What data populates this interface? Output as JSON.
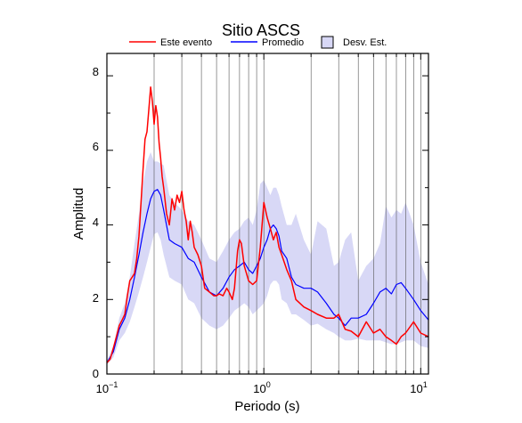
{
  "chart_data": {
    "type": "line",
    "title": "Sitio ASCS",
    "xlabel": "Periodo (s)",
    "ylabel": "Amplitud",
    "x_scale": "log",
    "xlim": [
      0.1,
      11.2
    ],
    "ylim": [
      0,
      8.6
    ],
    "x_major_ticks": [
      0.1,
      1,
      10
    ],
    "y_ticks": [
      0,
      2,
      4,
      6,
      8
    ],
    "grid": "vertical log grid lines",
    "legend_position": "top",
    "legend": [
      {
        "label": "Este evento",
        "kind": "line",
        "color": "#ff0000"
      },
      {
        "label": "Promedio",
        "kind": "line",
        "color": "#0000ff"
      },
      {
        "label": "Desv. Est.",
        "kind": "band",
        "color": "#d8d8f6"
      }
    ],
    "series": [
      {
        "name": "Este evento",
        "color": "#ff0000",
        "x": [
          0.1,
          0.105,
          0.11,
          0.115,
          0.12,
          0.125,
          0.13,
          0.135,
          0.14,
          0.145,
          0.15,
          0.155,
          0.16,
          0.165,
          0.17,
          0.175,
          0.18,
          0.185,
          0.19,
          0.195,
          0.2,
          0.205,
          0.21,
          0.215,
          0.22,
          0.225,
          0.23,
          0.24,
          0.25,
          0.26,
          0.27,
          0.28,
          0.29,
          0.3,
          0.31,
          0.32,
          0.33,
          0.34,
          0.35,
          0.36,
          0.38,
          0.4,
          0.42,
          0.45,
          0.48,
          0.5,
          0.52,
          0.55,
          0.58,
          0.6,
          0.63,
          0.65,
          0.68,
          0.7,
          0.72,
          0.75,
          0.8,
          0.85,
          0.9,
          0.95,
          1.0,
          1.05,
          1.1,
          1.15,
          1.2,
          1.25,
          1.3,
          1.4,
          1.5,
          1.6,
          1.8,
          2.0,
          2.2,
          2.5,
          2.8,
          3.0,
          3.3,
          3.6,
          4.0,
          4.5,
          5.0,
          5.5,
          6.0,
          6.5,
          7.0,
          7.5,
          8.0,
          9.0,
          10.0,
          11.2
        ],
        "values": [
          0.3,
          0.4,
          0.7,
          1.0,
          1.3,
          1.45,
          1.6,
          2.1,
          2.5,
          2.6,
          2.7,
          3.1,
          3.7,
          4.6,
          5.5,
          6.3,
          6.5,
          7.1,
          7.7,
          7.3,
          6.7,
          7.2,
          6.9,
          6.2,
          5.8,
          5.3,
          5.0,
          4.3,
          4.0,
          4.7,
          4.4,
          4.8,
          4.6,
          4.9,
          4.4,
          4.1,
          3.6,
          4.1,
          3.8,
          3.4,
          3.2,
          2.9,
          2.3,
          2.2,
          2.1,
          2.1,
          2.15,
          2.1,
          2.3,
          2.2,
          2.0,
          2.3,
          3.3,
          3.6,
          3.5,
          2.9,
          2.5,
          2.4,
          2.5,
          3.4,
          4.6,
          4.2,
          3.9,
          3.6,
          3.8,
          3.4,
          3.2,
          2.8,
          2.5,
          2.0,
          1.8,
          1.7,
          1.6,
          1.5,
          1.5,
          1.6,
          1.2,
          1.15,
          1.0,
          1.4,
          1.1,
          1.2,
          1.0,
          0.9,
          0.8,
          1.0,
          1.1,
          1.4,
          1.1,
          1.0
        ]
      },
      {
        "name": "Promedio",
        "color": "#0000ff",
        "x": [
          0.1,
          0.11,
          0.12,
          0.13,
          0.14,
          0.15,
          0.16,
          0.17,
          0.18,
          0.19,
          0.2,
          0.21,
          0.22,
          0.23,
          0.25,
          0.27,
          0.3,
          0.33,
          0.36,
          0.4,
          0.45,
          0.5,
          0.55,
          0.6,
          0.65,
          0.7,
          0.75,
          0.8,
          0.85,
          0.9,
          0.95,
          1.0,
          1.05,
          1.1,
          1.15,
          1.2,
          1.25,
          1.3,
          1.4,
          1.5,
          1.6,
          1.8,
          2.0,
          2.2,
          2.5,
          2.8,
          3.0,
          3.3,
          3.6,
          4.0,
          4.5,
          5.0,
          5.5,
          6.0,
          6.5,
          7.0,
          7.5,
          8.0,
          9.0,
          10.0,
          11.2
        ],
        "values": [
          0.3,
          0.6,
          1.2,
          1.5,
          2.0,
          2.6,
          3.2,
          3.8,
          4.3,
          4.7,
          4.9,
          4.95,
          4.8,
          4.4,
          3.6,
          3.5,
          3.4,
          3.1,
          3.0,
          2.6,
          2.2,
          2.1,
          2.3,
          2.6,
          2.8,
          2.9,
          3.0,
          2.8,
          2.7,
          2.9,
          3.1,
          3.4,
          3.6,
          3.9,
          4.0,
          3.9,
          3.7,
          3.3,
          3.1,
          2.6,
          2.4,
          2.3,
          2.3,
          2.2,
          1.9,
          1.6,
          1.5,
          1.3,
          1.5,
          1.5,
          1.6,
          1.9,
          2.2,
          2.3,
          2.15,
          2.4,
          2.45,
          2.3,
          2.0,
          1.7,
          1.45
        ]
      }
    ],
    "band": {
      "name": "Desv. Est.",
      "color": "#d8d8f6",
      "x": [
        0.1,
        0.11,
        0.12,
        0.13,
        0.14,
        0.15,
        0.16,
        0.17,
        0.18,
        0.19,
        0.2,
        0.21,
        0.22,
        0.23,
        0.25,
        0.27,
        0.3,
        0.33,
        0.36,
        0.4,
        0.45,
        0.5,
        0.55,
        0.6,
        0.65,
        0.7,
        0.75,
        0.8,
        0.85,
        0.9,
        0.95,
        1.0,
        1.05,
        1.1,
        1.15,
        1.2,
        1.25,
        1.3,
        1.4,
        1.5,
        1.6,
        1.8,
        2.0,
        2.2,
        2.5,
        2.8,
        3.0,
        3.3,
        3.6,
        4.0,
        4.5,
        5.0,
        5.5,
        6.0,
        6.5,
        7.0,
        7.5,
        8.0,
        9.0,
        10.0,
        11.2
      ],
      "upper": [
        0.35,
        0.75,
        1.5,
        1.9,
        2.6,
        3.5,
        4.3,
        5.1,
        5.7,
        5.95,
        5.7,
        5.7,
        5.65,
        5.6,
        4.8,
        4.6,
        4.4,
        4.1,
        4.0,
        3.6,
        3.1,
        3.0,
        3.3,
        3.6,
        3.8,
        3.9,
        4.1,
        4.2,
        4.0,
        4.4,
        5.1,
        5.2,
        5.0,
        4.8,
        5.0,
        5.0,
        4.8,
        4.5,
        4.0,
        4.0,
        4.3,
        3.6,
        3.2,
        4.1,
        3.9,
        2.9,
        3.0,
        3.6,
        3.8,
        2.5,
        2.9,
        3.1,
        3.5,
        4.5,
        4.2,
        4.4,
        4.3,
        4.6,
        4.0,
        3.0,
        2.4
      ],
      "lower": [
        0.25,
        0.45,
        0.9,
        1.1,
        1.4,
        1.8,
        2.2,
        2.6,
        3.0,
        3.4,
        3.75,
        3.8,
        3.6,
        3.2,
        2.6,
        2.5,
        2.4,
        2.0,
        1.9,
        1.5,
        1.3,
        1.2,
        1.3,
        1.5,
        1.7,
        1.8,
        1.9,
        1.8,
        1.6,
        1.7,
        1.8,
        1.9,
        2.1,
        2.4,
        2.5,
        2.5,
        2.4,
        2.0,
        1.9,
        1.6,
        1.6,
        1.45,
        1.3,
        1.35,
        1.2,
        1.1,
        1.0,
        0.9,
        0.9,
        0.95,
        0.9,
        0.9,
        0.9,
        0.85,
        0.8,
        0.8,
        0.85,
        0.9,
        0.9,
        0.75,
        0.7
      ]
    }
  }
}
